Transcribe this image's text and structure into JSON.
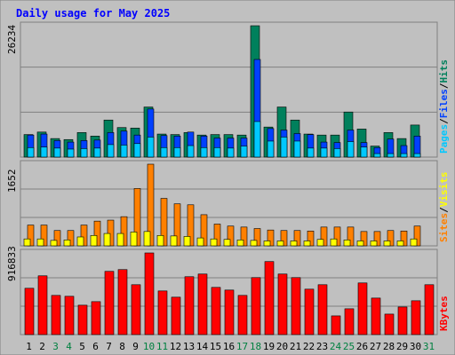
{
  "title": "Daily usage for May 2025",
  "colors": {
    "background": "#c0c0c0",
    "panel": "#c0c0c0",
    "hits": "#00805c",
    "files": "#0040ff",
    "pages": "#00c8ff",
    "visits": "#ffff00",
    "sites": "#ff8000",
    "kbytes": "#ff0000",
    "title_text": "#0000ff",
    "weekday_text": "#000000",
    "weekend_text": "#008040"
  },
  "chart_data": [
    {
      "type": "bar",
      "panel": "top",
      "ymax_label": "26234",
      "ylim": [
        0,
        26234
      ],
      "series_labels": [
        "Pages",
        "Files",
        "Hits"
      ],
      "categories": [
        "1",
        "2",
        "3",
        "4",
        "5",
        "6",
        "7",
        "8",
        "9",
        "10",
        "11",
        "12",
        "13",
        "14",
        "15",
        "16",
        "17",
        "18",
        "19",
        "20",
        "21",
        "22",
        "23",
        "24",
        "25",
        "26",
        "27",
        "28",
        "29",
        "30",
        "31"
      ],
      "weekend": [
        3,
        4,
        10,
        11,
        17,
        18,
        24,
        25,
        31
      ],
      "series": [
        {
          "name": "Hits",
          "values": [
            4500,
            5000,
            3700,
            3500,
            4900,
            4200,
            7400,
            5900,
            5800,
            10000,
            4600,
            4500,
            4900,
            4400,
            4500,
            4500,
            4400,
            26234,
            6000,
            10000,
            7400,
            4600,
            4400,
            4400,
            9000,
            5600,
            2200,
            4900,
            3700,
            6400,
            null
          ]
        },
        {
          "name": "Files",
          "values": [
            4400,
            4600,
            3300,
            3000,
            3300,
            3400,
            4900,
            5200,
            4400,
            9600,
            4300,
            4200,
            5000,
            4200,
            3800,
            3800,
            3800,
            19500,
            5700,
            5400,
            4700,
            4500,
            3000,
            2900,
            5400,
            2900,
            1900,
            3600,
            2300,
            4200,
            null
          ]
        },
        {
          "name": "Pages",
          "values": [
            1900,
            2000,
            1800,
            1600,
            1700,
            1800,
            2500,
            2400,
            2700,
            4000,
            1900,
            1900,
            2300,
            1900,
            1900,
            1800,
            2200,
            7100,
            3200,
            4000,
            3200,
            1800,
            1800,
            1700,
            3100,
            2000,
            700,
            700,
            700,
            700,
            null
          ]
        }
      ]
    },
    {
      "type": "bar",
      "panel": "middle",
      "ymax_label": "1652",
      "ylim": [
        0,
        1652
      ],
      "series_labels": [
        "Sites",
        "Visits"
      ],
      "categories": [
        "1",
        "2",
        "3",
        "4",
        "5",
        "6",
        "7",
        "8",
        "9",
        "10",
        "11",
        "12",
        "13",
        "14",
        "15",
        "16",
        "17",
        "18",
        "19",
        "20",
        "21",
        "22",
        "23",
        "24",
        "25",
        "26",
        "27",
        "28",
        "29",
        "30",
        "31"
      ],
      "series": [
        {
          "name": "Sites",
          "values": [
            420,
            420,
            310,
            310,
            420,
            500,
            520,
            590,
            1160,
            1652,
            960,
            850,
            830,
            630,
            440,
            400,
            380,
            350,
            320,
            310,
            310,
            300,
            380,
            380,
            380,
            290,
            290,
            310,
            300,
            400,
            null
          ]
        },
        {
          "name": "Visits",
          "values": [
            140,
            140,
            110,
            120,
            180,
            210,
            250,
            250,
            280,
            290,
            210,
            200,
            190,
            160,
            140,
            130,
            120,
            110,
            100,
            100,
            100,
            100,
            130,
            140,
            120,
            100,
            100,
            100,
            100,
            140,
            null
          ]
        }
      ]
    },
    {
      "type": "bar",
      "panel": "bottom",
      "ymax_label": "916833",
      "ylim": [
        0,
        916833
      ],
      "series_labels": [
        "KBytes"
      ],
      "categories": [
        "1",
        "2",
        "3",
        "4",
        "5",
        "6",
        "7",
        "8",
        "9",
        "10",
        "11",
        "12",
        "13",
        "14",
        "15",
        "16",
        "17",
        "18",
        "19",
        "20",
        "21",
        "22",
        "23",
        "24",
        "25",
        "26",
        "27",
        "28",
        "29",
        "30",
        "31"
      ],
      "series": [
        {
          "name": "KBytes",
          "values": [
            520000,
            660000,
            440000,
            430000,
            330000,
            370000,
            710000,
            730000,
            560000,
            916833,
            490000,
            420000,
            650000,
            680000,
            530000,
            500000,
            440000,
            640000,
            820000,
            680000,
            640000,
            510000,
            560000,
            210000,
            290000,
            580000,
            410000,
            230000,
            310000,
            380000,
            560000
          ]
        }
      ]
    }
  ]
}
